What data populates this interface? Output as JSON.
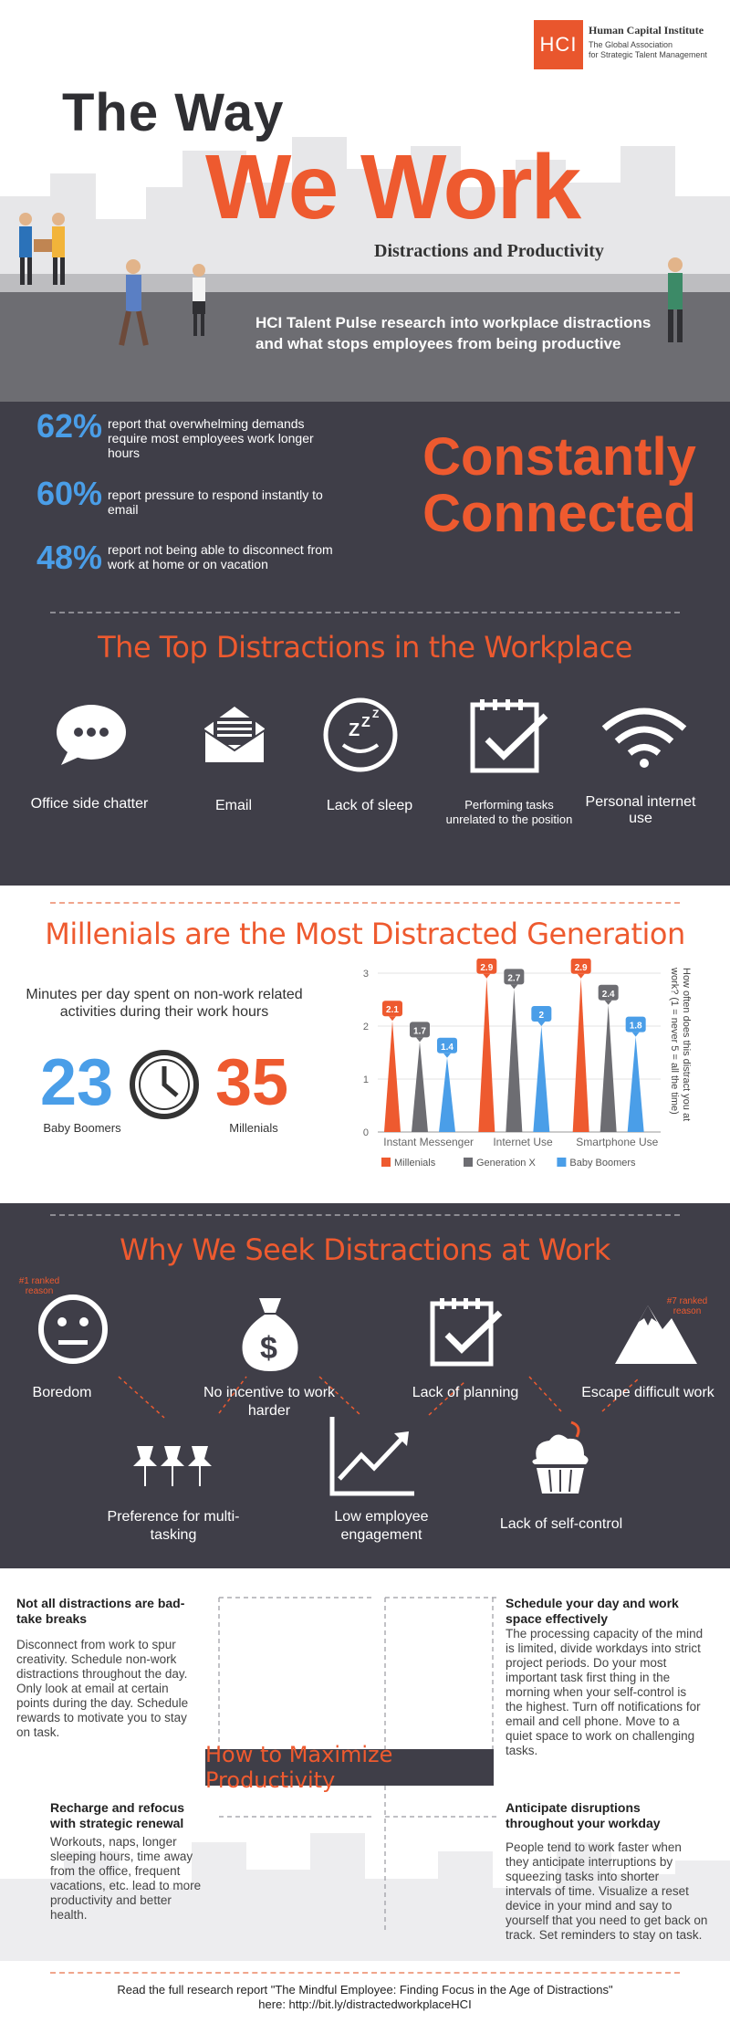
{
  "logo": {
    "mark": "HCI",
    "name": "Human Capital Institute",
    "tagline_1": "The Global Association",
    "tagline_2": "for Strategic Talent Management"
  },
  "title": {
    "line1": "The Way",
    "line2": "We Work",
    "subtitle": "Distractions and Productivity"
  },
  "intro": {
    "line1": "HCI Talent Pulse research into workplace distractions",
    "line2": "and what stops employees from being productive"
  },
  "stats": [
    {
      "pct": "62%",
      "text": "report that overwhelming demands require most employees work longer hours"
    },
    {
      "pct": "60%",
      "text": "report pressure to respond instantly to email"
    },
    {
      "pct": "48%",
      "text": "report not being able to disconnect from work at home or on vacation"
    }
  ],
  "constantly": {
    "line1": "Constantly",
    "line2": "Connected"
  },
  "top_distractions": {
    "title": "The Top Distractions in the Workplace",
    "items": [
      {
        "label": "Office side chatter",
        "icon": "chat-bubble-icon"
      },
      {
        "label": "Email",
        "icon": "envelope-icon"
      },
      {
        "label": "Lack of sleep",
        "icon": "sleep-icon"
      },
      {
        "label": "Performing tasks unrelated to the position",
        "icon": "calendar-check-icon"
      },
      {
        "label": "Personal internet use",
        "icon": "wifi-icon"
      }
    ]
  },
  "millennials": {
    "title": "Millenials are the Most Distracted Generation",
    "caption": "Minutes per day spent on non-work related activities during their work hours",
    "boomers_value": "23",
    "boomers_label": "Baby Boomers",
    "millennials_value": "35",
    "millennials_label": "Millenials"
  },
  "chart_data": {
    "type": "bar",
    "categories": [
      "Instant Messenger",
      "Internet Use",
      "Smartphone Use"
    ],
    "series": [
      {
        "name": "Millenials",
        "values": [
          2.1,
          2.9,
          2.9
        ],
        "color": "#ee5a2f"
      },
      {
        "name": "Generation X",
        "values": [
          1.7,
          2.7,
          2.4
        ],
        "color": "#6d6d72"
      },
      {
        "name": "Baby Boomers",
        "values": [
          1.4,
          2.0,
          1.8
        ],
        "color": "#4a9ee8"
      }
    ],
    "ylim": [
      0,
      3
    ],
    "yticks": [
      "0",
      "1",
      "2",
      "3"
    ],
    "ylabel": "How often does this distract you at work? (1 = never 5 = all the time)",
    "legend": "bottom"
  },
  "why": {
    "title": "Why We Seek Distractions at Work",
    "rank1": "#1 ranked reason",
    "rank7": "#7 ranked reason",
    "items": [
      {
        "label": "Boredom",
        "icon": "bored-face-icon"
      },
      {
        "label": "No incentive to work harder",
        "icon": "money-bag-icon"
      },
      {
        "label": "Lack of planning",
        "icon": "calendar-check-icon"
      },
      {
        "label": "Escape difficult work",
        "icon": "mountain-icon"
      },
      {
        "label": "Preference for multi-tasking",
        "icon": "pushpins-icon"
      },
      {
        "label": "Low employee engagement",
        "icon": "line-graph-icon"
      },
      {
        "label": "Lack of self-control",
        "icon": "cupcake-icon"
      }
    ]
  },
  "tips": {
    "center_title": "How to Maximize Productivity",
    "t1_h": "Not all distractions are bad- take breaks",
    "t1_b": "Disconnect from work to spur creativity. Schedule non-work distractions throughout the day. Only look at email at certain points during the day. Schedule rewards to motivate you to stay on task.",
    "t2_h": "Schedule your day and work space effectively",
    "t2_b": "The processing capacity of the mind is limited, divide workdays into strict project periods. Do your most important task first thing in the morning when your self-control is the highest. Turn off notifications for email and cell phone. Move to a quiet space to work on challenging tasks.",
    "t3_h": "Recharge and refocus with strategic renewal",
    "t3_b": "Workouts, naps, longer sleeping hours, time away from the office, frequent vacations, etc. lead to more productivity and better health.",
    "t4_h": "Anticipate disruptions throughout your workday",
    "t4_b": "People tend to work faster when they anticipate interruptions by squeezing tasks into shorter intervals of time. Visualize a reset device in your mind and say to yourself that you need to get back on track. Set reminders to stay on task."
  },
  "footer": {
    "line1": "Read the full research report \"The Mindful Employee: Finding Focus in the Age of Distractions\"",
    "line2": "here: http://bit.ly/distractedworkplaceHCI"
  }
}
